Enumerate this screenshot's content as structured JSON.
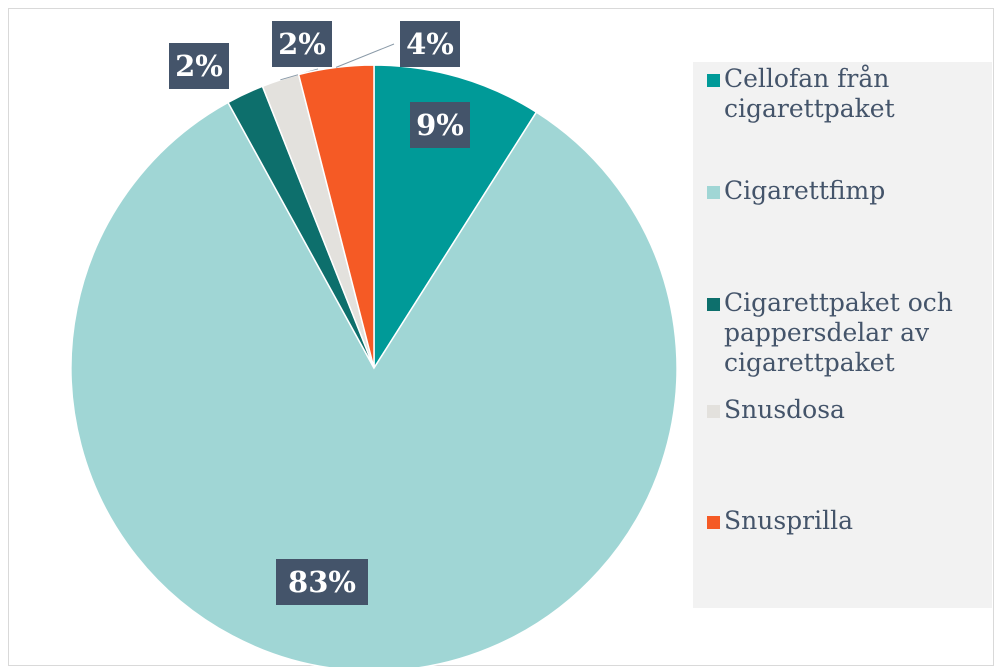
{
  "chart_data": {
    "type": "pie",
    "start_angle_deg": 0,
    "direction": "clockwise",
    "slices": [
      {
        "label": "Cellofan från cigarettpaket",
        "value": 9,
        "data_label": "9%",
        "color": "#009a98"
      },
      {
        "label": "Cigarettfimp",
        "value": 83,
        "data_label": "83%",
        "color": "#a0d6d5"
      },
      {
        "label": "Cigarettpaket och pappersdelar av cigarettpaket",
        "value": 2,
        "data_label": "2%",
        "color": "#0d6f6c"
      },
      {
        "label": "Snusdosa",
        "value": 2,
        "data_label": "2%",
        "color": "#e3e1dd"
      },
      {
        "label": "Snusprilla",
        "value": 4,
        "data_label": "4%",
        "color": "#f55a25"
      }
    ],
    "data_label_style": {
      "background": "#44546a",
      "text_color": "#ffffff"
    },
    "legend_position": "right",
    "title": ""
  },
  "legend": {
    "items": [
      {
        "lines": [
          "Cellofan från",
          "cigarettpaket"
        ],
        "color": "#009a98"
      },
      {
        "lines": [
          "Cigarettfimp"
        ],
        "color": "#a0d6d5"
      },
      {
        "lines": [
          "Cigarettpaket och",
          "pappersdelar av",
          "cigarettpaket"
        ],
        "color": "#0d6f6c"
      },
      {
        "lines": [
          "Snusdosa"
        ],
        "color": "#e3e1dd"
      },
      {
        "lines": [
          "Snusprilla"
        ],
        "color": "#f55a25"
      }
    ]
  }
}
